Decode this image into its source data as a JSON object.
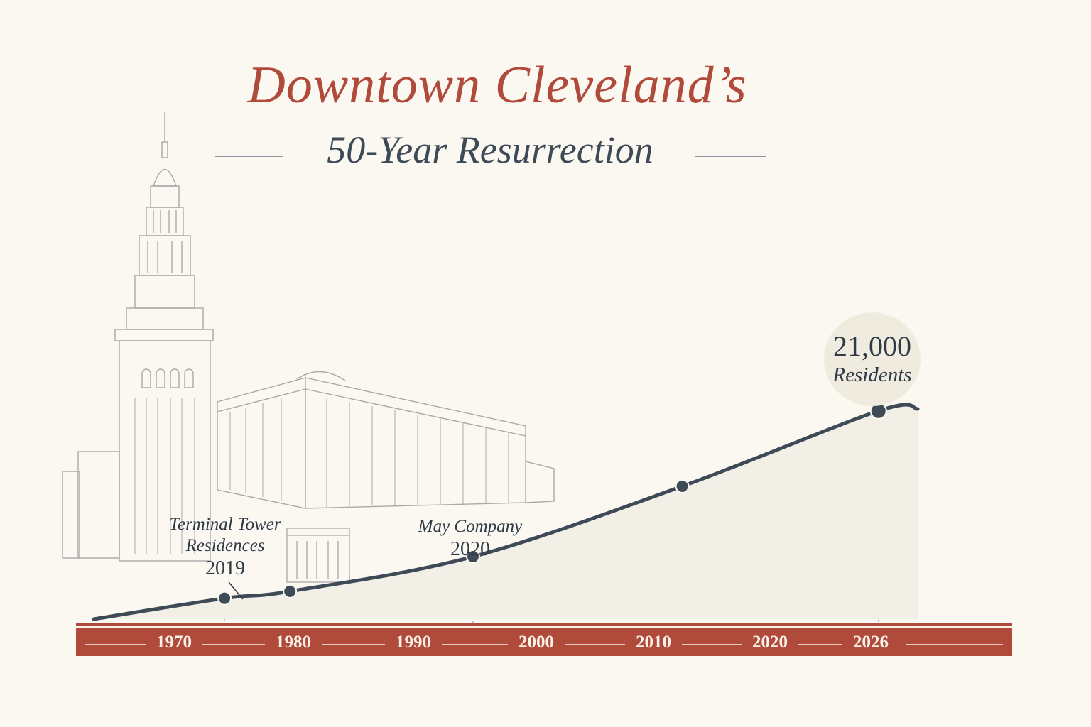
{
  "title": "Downtown Cleveland’s",
  "subtitle": "50-Year Resurrection",
  "colors": {
    "accent_red": "#b04a3a",
    "line_navy": "#3f4a57",
    "background": "#fbf8f1"
  },
  "callouts": {
    "terminal_tower": {
      "line1": "Terminal Tower",
      "line2": "Residences",
      "year": "2019"
    },
    "may_company": {
      "line1": "May Company",
      "year": "2020"
    },
    "peak": {
      "value": "21,000",
      "label": "Residents"
    }
  },
  "chart_data": {
    "type": "line",
    "title": "Downtown Cleveland’s 50-Year Resurrection",
    "subtitle": "",
    "xlabel": "",
    "ylabel": "",
    "x_tick_labels": [
      "1970",
      "1980",
      "1990",
      "2000",
      "2010",
      "2020",
      "2026"
    ],
    "series": [
      {
        "values_note": "",
        "x": [
          1966,
          1976,
          1981,
          1995,
          2011,
          2026,
          2029
        ],
        "y": [
          0,
          2100,
          2800,
          6300,
          13400,
          21000,
          21200
        ]
      }
    ],
    "markers": [
      {
        "x": 1976,
        "y": 2100,
        "label": "Terminal Tower Residences 2019"
      },
      {
        "x": 1981,
        "y": 2800,
        "label": ""
      },
      {
        "x": 1995,
        "y": 6300,
        "label": "May Company 2020"
      },
      {
        "x": 2011,
        "y": 13400,
        "label": ""
      },
      {
        "x": 2026,
        "y": 21000,
        "label": "21,000 Residents"
      }
    ],
    "grid": false,
    "legend": "none"
  },
  "illustrations": {
    "buildings": [
      "terminal-tower-icon",
      "may-company-building-icon",
      "small-building-icon"
    ]
  }
}
